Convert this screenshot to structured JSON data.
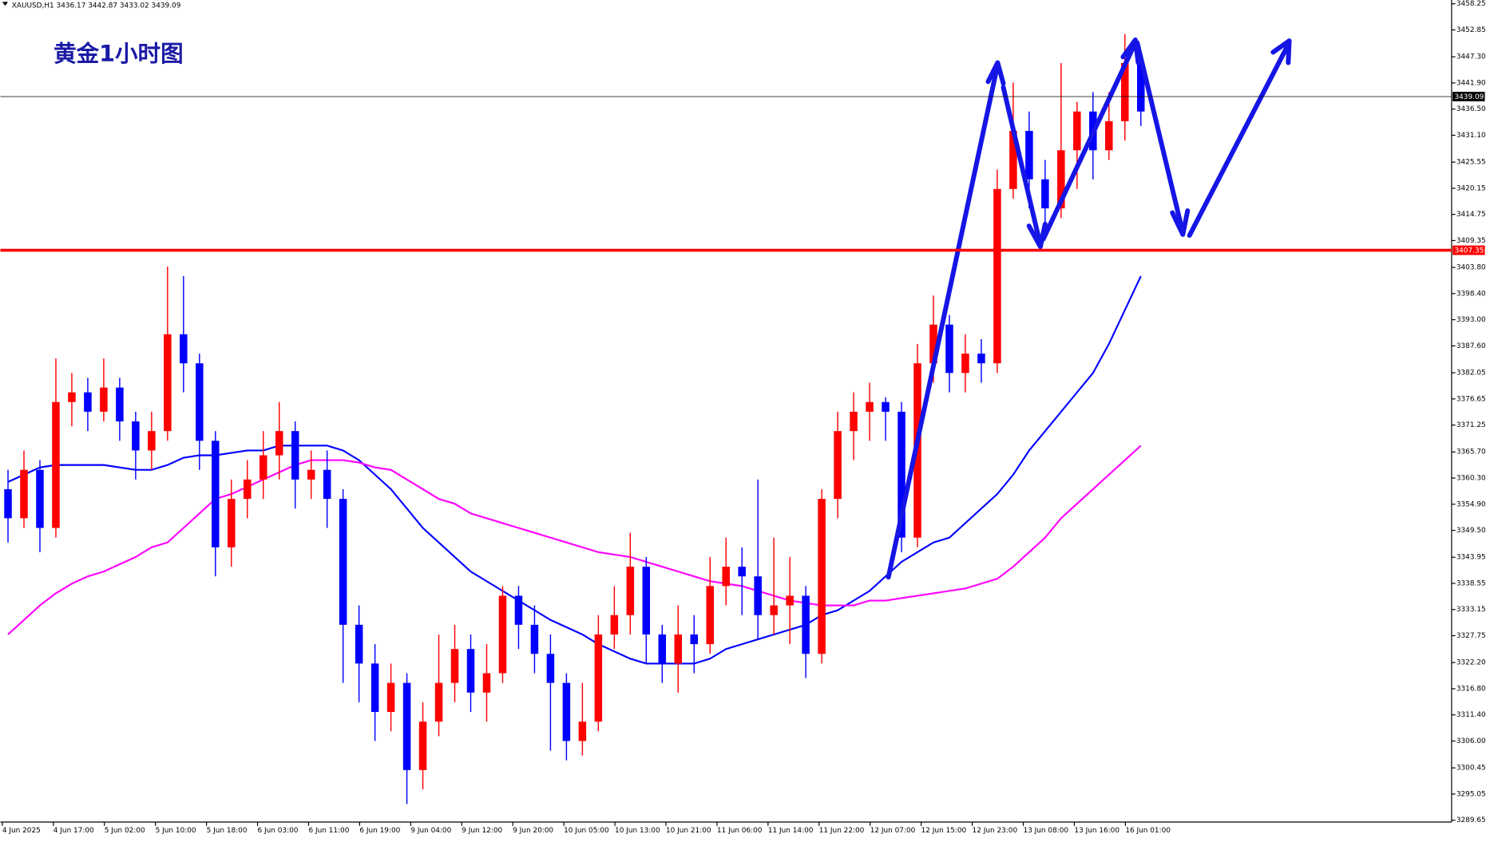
{
  "chart_data": {
    "type": "candlestick",
    "header": "XAUUSD,H1  3436.17 3442.87 3433.02 3439.09",
    "title": "黄金1小时图",
    "up_color": "#ff0000",
    "down_color": "#0000ff",
    "open": [
      3358,
      3352,
      3362,
      3350,
      3376,
      3378,
      3374,
      3379,
      3372,
      3366,
      3370,
      3390,
      3384,
      3368,
      3346,
      3356,
      3360,
      3365,
      3370,
      3360,
      3362,
      3356,
      3330,
      3322,
      3312,
      3318,
      3300,
      3310,
      3318,
      3325,
      3316,
      3320,
      3336,
      3330,
      3324,
      3318,
      3306,
      3310,
      3328,
      3332,
      3342,
      3328,
      3322,
      3328,
      3326,
      3338,
      3342,
      3340,
      3332,
      3334,
      3336,
      3324,
      3356,
      3370,
      3374,
      3376,
      3374,
      3348,
      3384,
      3392,
      3382,
      3386,
      3384,
      3420,
      3432,
      3422,
      3416,
      3428,
      3436,
      3428,
      3434,
      3446
    ],
    "high": [
      3362,
      3366,
      3364,
      3385,
      3382,
      3381,
      3385,
      3381,
      3374,
      3374,
      3404,
      3402,
      3386,
      3370,
      3360,
      3364,
      3370,
      3376,
      3372,
      3366,
      3366,
      3358,
      3334,
      3326,
      3322,
      3320,
      3314,
      3328,
      3330,
      3328,
      3326,
      3338,
      3338,
      3334,
      3328,
      3320,
      3318,
      3332,
      3338,
      3349,
      3344,
      3330,
      3334,
      3332,
      3344,
      3348,
      3346,
      3360,
      3348,
      3344,
      3338,
      3358,
      3374,
      3378,
      3380,
      3377,
      3376,
      3388,
      3398,
      3394,
      3390,
      3389,
      3424,
      3442,
      3436,
      3426,
      3446,
      3438,
      3440,
      3440,
      3452,
      3448
    ],
    "low": [
      3347,
      3350,
      3345,
      3348,
      3371,
      3370,
      3372,
      3368,
      3360,
      3362,
      3368,
      3378,
      3362,
      3340,
      3342,
      3352,
      3356,
      3360,
      3354,
      3356,
      3350,
      3318,
      3314,
      3306,
      3308,
      3293,
      3296,
      3307,
      3314,
      3312,
      3310,
      3318,
      3325,
      3320,
      3304,
      3302,
      3303,
      3308,
      3325,
      3328,
      3322,
      3318,
      3316,
      3320,
      3324,
      3334,
      3332,
      3327,
      3328,
      3326,
      3319,
      3322,
      3352,
      3364,
      3368,
      3368,
      3345,
      3346,
      3380,
      3378,
      3378,
      3380,
      3382,
      3418,
      3416,
      3410,
      3414,
      3420,
      3422,
      3426,
      3430,
      3433
    ],
    "close": [
      3352,
      3362,
      3350,
      3376,
      3378,
      3374,
      3379,
      3372,
      3366,
      3370,
      3390,
      3384,
      3368,
      3346,
      3356,
      3360,
      3365,
      3370,
      3360,
      3362,
      3356,
      3330,
      3322,
      3312,
      3318,
      3300,
      3310,
      3318,
      3325,
      3316,
      3320,
      3336,
      3330,
      3324,
      3318,
      3306,
      3310,
      3328,
      3332,
      3342,
      3328,
      3322,
      3328,
      3326,
      3338,
      3342,
      3340,
      3332,
      3334,
      3336,
      3324,
      3356,
      3370,
      3374,
      3376,
      3374,
      3348,
      3384,
      3392,
      3382,
      3386,
      3384,
      3420,
      3432,
      3422,
      3416,
      3428,
      3436,
      3428,
      3434,
      3446,
      3436
    ],
    "moving_averages": [
      {
        "color": "#0000ff",
        "values": [
          3359.5,
          3361,
          3362.5,
          3363,
          3363,
          3363,
          3363,
          3362.5,
          3362,
          3362,
          3363,
          3364.5,
          3365,
          3365,
          3365.5,
          3366,
          3366,
          3367,
          3367,
          3367,
          3367,
          3366,
          3364,
          3361,
          3358,
          3354,
          3350,
          3347,
          3344,
          3341,
          3339,
          3337,
          3335,
          3333,
          3331,
          3329.5,
          3328,
          3326,
          3324.5,
          3323,
          3322,
          3322,
          3322,
          3322,
          3323,
          3325,
          3326,
          3327,
          3328,
          3329,
          3330,
          3332,
          3333,
          3335,
          3337,
          3340,
          3343,
          3345,
          3347,
          3348,
          3351,
          3354,
          3357,
          3361,
          3366,
          3370,
          3374,
          3378,
          3382,
          3388,
          3395,
          3402
        ]
      },
      {
        "color": "#ff00ff",
        "values": [
          3328,
          3331,
          3334,
          3336.5,
          3338.5,
          3340,
          3341,
          3342.5,
          3344,
          3346,
          3347,
          3350,
          3353,
          3356,
          3357,
          3358.5,
          3360,
          3361.5,
          3363,
          3364,
          3364,
          3364,
          3363.5,
          3362.5,
          3362,
          3360,
          3358,
          3356,
          3355,
          3353,
          3352,
          3351,
          3350,
          3349,
          3348,
          3347,
          3346,
          3345,
          3344.5,
          3344,
          3343,
          3342,
          3341,
          3340,
          3339,
          3338.5,
          3338,
          3337,
          3336,
          3335,
          3334.5,
          3334,
          3334,
          3334,
          3335,
          3335,
          3335.5,
          3336,
          3336.5,
          3337,
          3337.5,
          3338.5,
          3339.5,
          3342,
          3345,
          3348,
          3352,
          3355,
          3358,
          3361,
          3364,
          3367
        ]
      }
    ],
    "hlines": [
      {
        "value": 3439.09,
        "color": "#000000"
      },
      {
        "value": 3407.35,
        "color": "#ff0000"
      }
    ],
    "ylim": [
      3289.26,
      3459.03
    ],
    "yticks": [
      3458.25,
      3452.85,
      {
        "value": 3447.3,
        "label": "3447.30"
      },
      {
        "value": 3441.9,
        "label": "3441.90"
      },
      {
        "value": 3436.5,
        "label": "3436.50"
      },
      {
        "value": 3431.1,
        "label": "3431.10"
      },
      3425.55,
      3420.15,
      3414.75,
      3409.35,
      {
        "value": 3403.8,
        "label": "3403.80"
      },
      {
        "value": 3398.4,
        "label": "3398.40"
      },
      {
        "value": 3393,
        "label": "3393.00"
      },
      {
        "value": 3387.6,
        "label": "3387.60"
      },
      3382.05,
      3376.65,
      3371.25,
      {
        "value": 3365.7,
        "label": "3365.70"
      },
      {
        "value": 3360.3,
        "label": "3360.30"
      },
      {
        "value": 3354.9,
        "label": "3354.90"
      },
      {
        "value": 3349.5,
        "label": "3349.50"
      },
      3343.95,
      3338.55,
      3333.15,
      3327.75,
      {
        "value": 3322.2,
        "label": "3322.20"
      },
      {
        "value": 3316.8,
        "label": "3316.80"
      },
      {
        "value": 3311.4,
        "label": "3311.40"
      },
      {
        "value": 3306,
        "label": "3306.00"
      },
      3300.45,
      3295.05,
      3289.65
    ],
    "xtick_labels": [
      "4 Jun 2025",
      "4 Jun 17:00",
      "5 Jun 02:00",
      "5 Jun 10:00",
      "5 Jun 18:00",
      "6 Jun 03:00",
      "6 Jun 11:00",
      "6 Jun 19:00",
      "9 Jun 04:00",
      "9 Jun 12:00",
      "9 Jun 20:00",
      "10 Jun 05:00",
      "10 Jun 13:00",
      "10 Jun 21:00",
      "11 Jun 06:00",
      "11 Jun 14:00",
      "11 Jun 22:00",
      "12 Jun 07:00",
      "12 Jun 15:00",
      "12 Jun 23:00",
      "13 Jun 08:00",
      "13 Jun 16:00",
      "16 Jun 01:00"
    ]
  }
}
